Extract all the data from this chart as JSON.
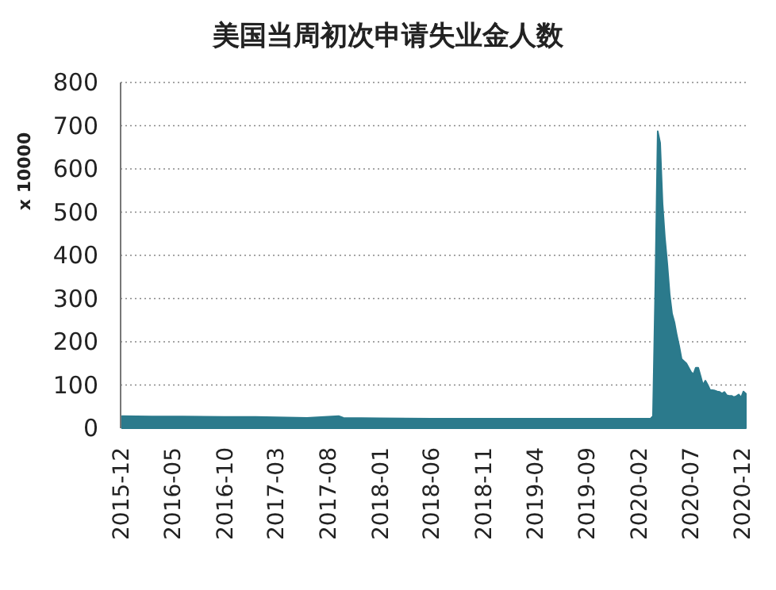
{
  "chart_data": {
    "type": "area",
    "title": "美国当周初次申请失业金人数",
    "ylabel": "x 10000",
    "x": [
      "2015-12-05",
      "2016-03-01",
      "2016-06-01",
      "2016-10-01",
      "2017-01-01",
      "2017-06-01",
      "2017-09-02",
      "2017-09-16",
      "2018-01-01",
      "2018-06-01",
      "2019-01-01",
      "2019-06-01",
      "2019-10-01",
      "2020-03-07",
      "2020-03-14",
      "2020-03-21",
      "2020-03-28",
      "2020-04-04",
      "2020-04-11",
      "2020-04-18",
      "2020-04-25",
      "2020-05-02",
      "2020-05-09",
      "2020-05-16",
      "2020-05-23",
      "2020-05-30",
      "2020-06-06",
      "2020-06-13",
      "2020-06-20",
      "2020-06-27",
      "2020-07-04",
      "2020-07-11",
      "2020-07-18",
      "2020-07-25",
      "2020-08-01",
      "2020-08-08",
      "2020-08-15",
      "2020-08-22",
      "2020-08-29",
      "2020-09-05",
      "2020-09-12",
      "2020-09-19",
      "2020-09-26",
      "2020-10-03",
      "2020-10-10",
      "2020-10-17",
      "2020-10-24",
      "2020-10-31",
      "2020-11-07",
      "2020-11-14",
      "2020-11-21",
      "2020-11-28",
      "2020-12-05",
      "2020-12-12"
    ],
    "values": [
      28,
      27,
      27,
      26,
      26,
      24,
      28,
      24,
      23,
      22,
      22,
      22,
      22,
      22,
      28,
      330,
      687,
      660,
      520,
      440,
      380,
      310,
      265,
      245,
      215,
      190,
      160,
      155,
      150,
      140,
      130,
      125,
      140,
      140,
      120,
      100,
      110,
      100,
      88,
      88,
      87,
      85,
      84,
      80,
      84,
      76,
      75,
      75,
      72,
      74,
      78,
      71,
      85,
      80
    ],
    "color": "#2b7a8c",
    "xlim": [
      "2015-12",
      "2020-12-12"
    ],
    "xticks": [
      "2015-12",
      "2016-05",
      "2016-10",
      "2017-03",
      "2017-08",
      "2018-01",
      "2018-06",
      "2018-11",
      "2019-04",
      "2019-09",
      "2020-02",
      "2020-07",
      "2020-12"
    ],
    "ylim": [
      0,
      800
    ],
    "yticks": [
      0,
      100,
      200,
      300,
      400,
      500,
      600,
      700,
      800
    ],
    "grid": "y"
  }
}
